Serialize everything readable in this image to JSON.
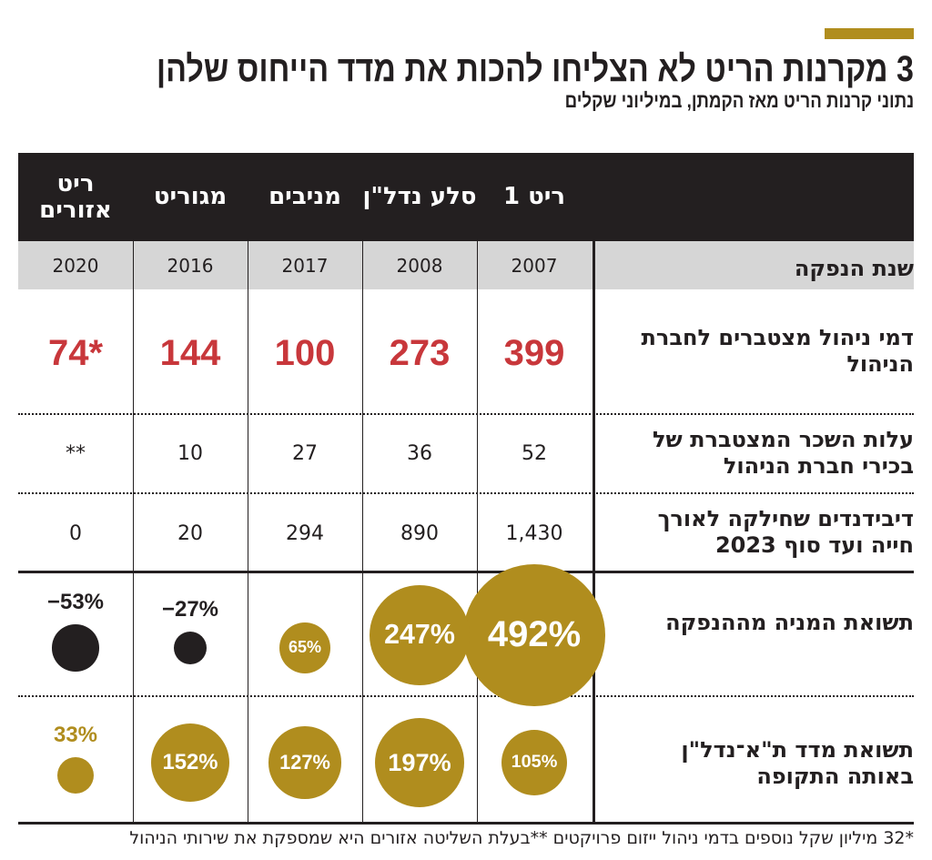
{
  "title": "3 מקרנות הריט לא הצליחו להכות את מדד הייחוס שלהן",
  "subtitle": "נתוני קרנות הריט מאז הקמתן, במיליוני שקלים",
  "colors": {
    "accent": "#b08d1e",
    "red": "#c8373b",
    "dark": "#231f20",
    "negative": "#231f20"
  },
  "chart_data": {
    "type": "table",
    "columns": [
      "ריט 1",
      "סלע נדל\"ן",
      "מניבים",
      "מגוריט",
      "ריט אזורים"
    ],
    "rows": [
      {
        "label": "שנת הנפקה",
        "values": [
          "2007",
          "2008",
          "2017",
          "2016",
          "2020"
        ]
      },
      {
        "label": "דמי ניהול מצטברים לחברת הניהול",
        "values": [
          "399",
          "273",
          "100",
          "144",
          "74*"
        ]
      },
      {
        "label": "עלות השכר המצטברת של בכירי חברת הניהול",
        "values": [
          "52",
          "36",
          "27",
          "10",
          "**"
        ]
      },
      {
        "label": "דיבידנדים שחילקה לאורך חייה ועד סוף 2023",
        "values": [
          "1,430",
          "890",
          "294",
          "20",
          "0"
        ]
      },
      {
        "label": "תשואת המניה מההנפקה",
        "values": [
          492,
          247,
          65,
          -27,
          -53
        ],
        "labels": [
          "492%",
          "247%",
          "65%",
          "−27%",
          "−53%"
        ]
      },
      {
        "label": "תשואת מדד ת\"א־נדל\"ן באותה התקופה",
        "values": [
          105,
          197,
          127,
          152,
          33
        ],
        "labels": [
          "105%",
          "197%",
          "127%",
          "152%",
          "33%"
        ]
      }
    ]
  },
  "footer": "*32 מיליון שקל נוספים בדמי ניהול ייזום פרויקטים **בעלת השליטה אזורים היא שמספקת את שירותי הניהול"
}
